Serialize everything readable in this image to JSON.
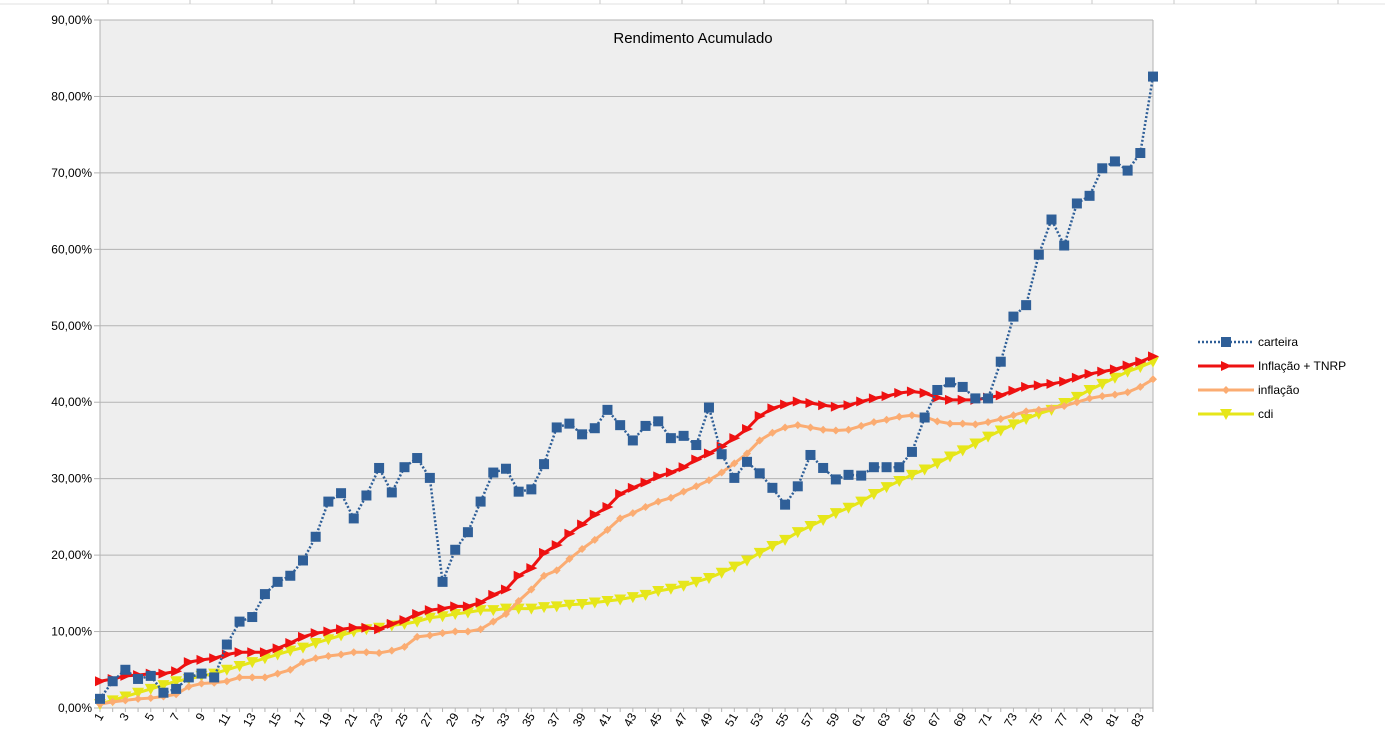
{
  "chart_data": {
    "type": "line",
    "title": "Rendimento Acumulado",
    "xlabel": "",
    "ylabel": "",
    "ylim": [
      0,
      90
    ],
    "y_ticks": [
      0,
      10,
      20,
      30,
      40,
      50,
      60,
      70,
      80,
      90
    ],
    "y_tick_labels": [
      "0,00%",
      "10,00%",
      "20,00%",
      "30,00%",
      "40,00%",
      "50,00%",
      "60,00%",
      "70,00%",
      "80,00%",
      "90,00%"
    ],
    "x": [
      1,
      2,
      3,
      4,
      5,
      6,
      7,
      8,
      9,
      10,
      11,
      12,
      13,
      14,
      15,
      16,
      17,
      18,
      19,
      20,
      21,
      22,
      23,
      24,
      25,
      26,
      27,
      28,
      29,
      30,
      31,
      32,
      33,
      34,
      35,
      36,
      37,
      38,
      39,
      40,
      41,
      42,
      43,
      44,
      45,
      46,
      47,
      48,
      49,
      50,
      51,
      52,
      53,
      54,
      55,
      56,
      57,
      58,
      59,
      60,
      61,
      62,
      63,
      64,
      65,
      66,
      67,
      68,
      69,
      70,
      71,
      72,
      73,
      74,
      75,
      76,
      77,
      78,
      79,
      80,
      81,
      82,
      83,
      84
    ],
    "x_tick_labels": [
      "1",
      "3",
      "5",
      "7",
      "9",
      "11",
      "13",
      "15",
      "17",
      "19",
      "21",
      "23",
      "25",
      "27",
      "29",
      "31",
      "33",
      "35",
      "37",
      "39",
      "41",
      "43",
      "45",
      "47",
      "49",
      "51",
      "53",
      "55",
      "57",
      "59",
      "61",
      "63",
      "65",
      "67",
      "69",
      "71",
      "73",
      "75",
      "77",
      "79",
      "81",
      "83"
    ],
    "grid": "horizontal",
    "legend_position": "right",
    "plot_background": "#eeeeee",
    "series": [
      {
        "name": "carteira",
        "color": "#2f5f98",
        "marker": "square",
        "line_style": "dotted",
        "values": [
          1.2,
          3.5,
          5.0,
          3.8,
          4.2,
          2.0,
          2.5,
          4.0,
          4.5,
          4.0,
          8.3,
          11.3,
          11.9,
          14.9,
          16.5,
          17.3,
          19.3,
          22.4,
          27.0,
          28.1,
          24.8,
          27.8,
          31.4,
          28.2,
          31.5,
          32.7,
          30.1,
          16.5,
          20.7,
          23.0,
          27.0,
          30.8,
          31.3,
          28.3,
          28.6,
          31.9,
          36.7,
          37.2,
          35.8,
          36.6,
          39.0,
          37.0,
          35.0,
          36.9,
          37.5,
          35.3,
          35.6,
          34.4,
          39.3,
          33.2,
          30.1,
          32.2,
          30.7,
          28.8,
          26.6,
          29.0,
          33.1,
          31.4,
          29.9,
          30.5,
          30.4,
          31.5,
          31.5,
          31.5,
          33.5,
          38.0,
          41.6,
          42.6,
          42.0,
          40.5,
          40.5,
          45.3,
          51.2,
          52.7,
          59.3,
          63.9,
          60.5,
          66.0,
          67.0,
          70.6,
          71.5,
          70.3,
          72.6,
          82.6
        ]
      },
      {
        "name": "Inflação + TNRP",
        "color": "#ee1111",
        "marker": "triangle-right",
        "line_style": "solid",
        "values": [
          3.5,
          3.8,
          4.2,
          4.3,
          4.5,
          4.5,
          4.8,
          6.0,
          6.3,
          6.5,
          7.0,
          7.3,
          7.3,
          7.3,
          7.8,
          8.5,
          9.3,
          9.8,
          10.0,
          10.3,
          10.5,
          10.5,
          10.3,
          11.0,
          11.5,
          12.3,
          12.8,
          13.0,
          13.3,
          13.3,
          13.8,
          14.8,
          15.5,
          17.3,
          18.3,
          20.3,
          21.3,
          22.8,
          24.0,
          25.3,
          26.3,
          28.0,
          28.8,
          29.5,
          30.3,
          30.8,
          31.5,
          32.5,
          33.3,
          34.2,
          35.3,
          36.5,
          38.2,
          39.2,
          39.7,
          40.1,
          39.9,
          39.6,
          39.4,
          39.6,
          40.1,
          40.5,
          40.8,
          41.2,
          41.4,
          41.2,
          40.6,
          40.3,
          40.3,
          40.3,
          40.6,
          40.9,
          41.5,
          42.0,
          42.2,
          42.4,
          42.7,
          43.2,
          43.7,
          44.0,
          44.3,
          44.8,
          45.3,
          46.0
        ]
      },
      {
        "name": "inflação",
        "color": "#fbac72",
        "marker": "diamond",
        "line_style": "solid",
        "values": [
          0.5,
          0.8,
          1.0,
          1.2,
          1.3,
          1.5,
          1.8,
          2.8,
          3.2,
          3.3,
          3.5,
          4.0,
          4.0,
          4.0,
          4.5,
          5.0,
          6.0,
          6.5,
          6.8,
          7.0,
          7.3,
          7.3,
          7.2,
          7.5,
          8.0,
          9.3,
          9.5,
          9.8,
          10.0,
          10.0,
          10.3,
          11.3,
          12.3,
          14.0,
          15.5,
          17.3,
          18.0,
          19.5,
          20.8,
          22.0,
          23.3,
          24.8,
          25.5,
          26.3,
          27.0,
          27.5,
          28.3,
          29.0,
          29.8,
          30.8,
          32.0,
          33.3,
          35.0,
          36.0,
          36.7,
          37.0,
          36.7,
          36.4,
          36.3,
          36.4,
          36.9,
          37.4,
          37.7,
          38.1,
          38.3,
          38.1,
          37.5,
          37.2,
          37.2,
          37.1,
          37.4,
          37.8,
          38.3,
          38.8,
          39.0,
          39.2,
          39.5,
          40.0,
          40.5,
          40.8,
          41.0,
          41.3,
          42.0,
          43.0
        ]
      },
      {
        "name": "cdi",
        "color": "#e6e619",
        "marker": "triangle-down",
        "line_style": "solid",
        "values": [
          0.5,
          1.0,
          1.5,
          2.0,
          2.5,
          3.0,
          3.5,
          3.8,
          4.2,
          4.5,
          5.0,
          5.5,
          6.0,
          6.5,
          7.0,
          7.5,
          7.9,
          8.5,
          9.0,
          9.5,
          10.0,
          10.3,
          10.5,
          10.8,
          11.0,
          11.3,
          11.8,
          12.0,
          12.3,
          12.5,
          12.8,
          12.8,
          13.0,
          13.0,
          13.0,
          13.2,
          13.3,
          13.5,
          13.6,
          13.8,
          14.0,
          14.2,
          14.5,
          14.8,
          15.3,
          15.6,
          16.0,
          16.5,
          17.0,
          17.7,
          18.5,
          19.3,
          20.3,
          21.2,
          22.0,
          23.0,
          23.8,
          24.6,
          25.5,
          26.2,
          27.0,
          28.0,
          28.9,
          29.7,
          30.5,
          31.2,
          32.0,
          32.9,
          33.7,
          34.6,
          35.5,
          36.3,
          37.1,
          37.8,
          38.5,
          39.0,
          39.9,
          40.7,
          41.6,
          42.4,
          43.2,
          44.0,
          44.6,
          45.3
        ]
      }
    ]
  }
}
